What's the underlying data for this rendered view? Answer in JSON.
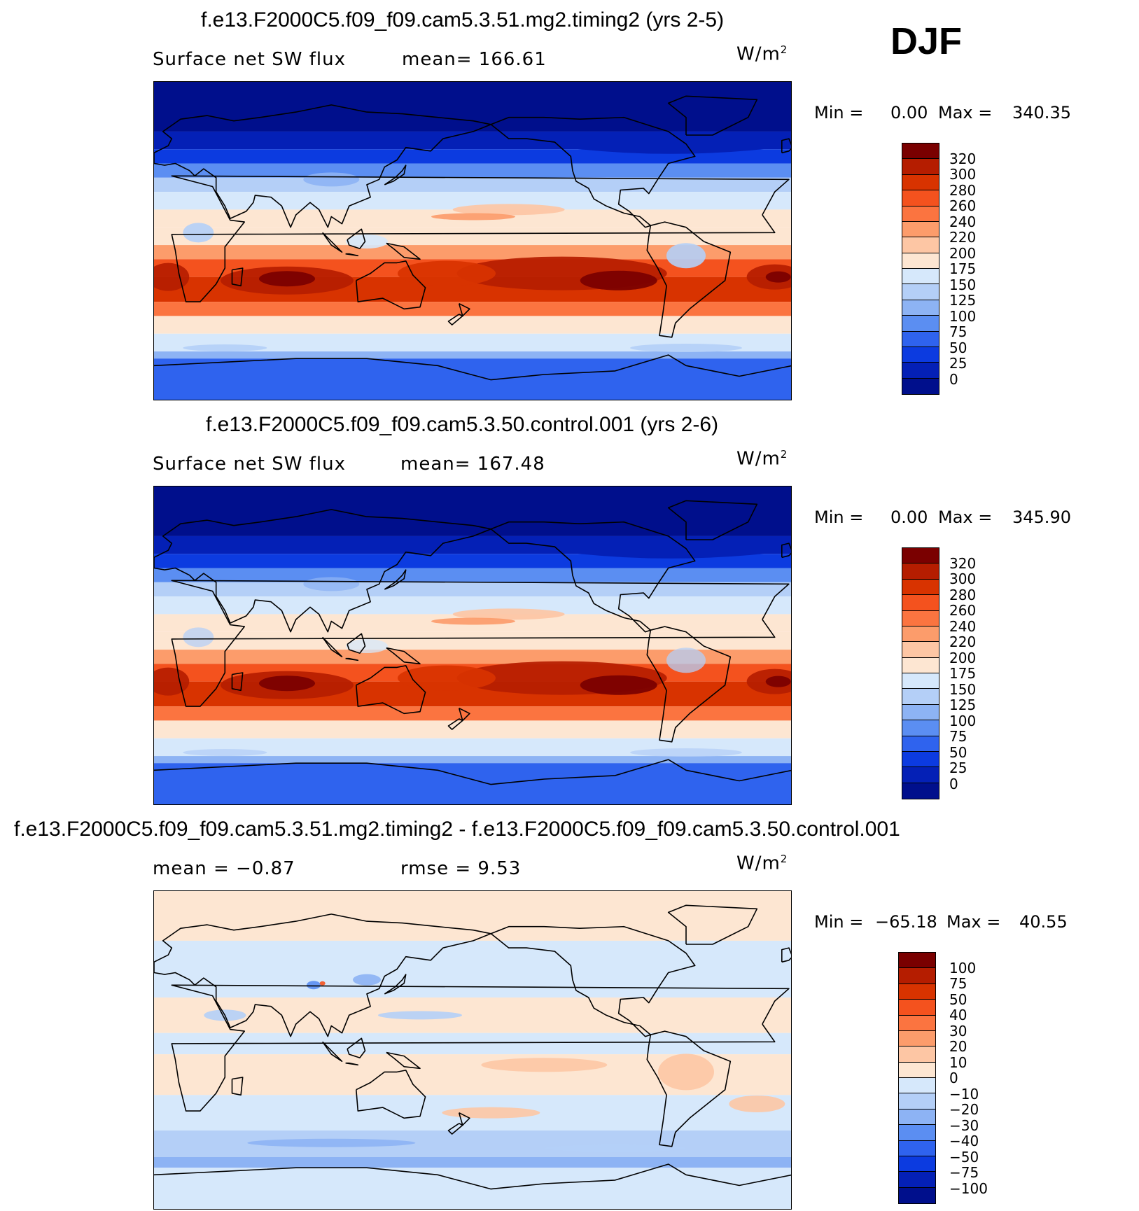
{
  "season": "DJF",
  "units": "W/m",
  "units_sup": "2",
  "panels": [
    {
      "title": "f.e13.F2000C5.f09_f09.cam5.3.51.mg2.timing2 (yrs 2-5)",
      "variable": "Surface net SW flux",
      "stat": "mean=  166.61",
      "min_label": "Min  =",
      "min_value": "0.00",
      "max_label": "Max  =",
      "max_value": "340.35",
      "kind": "absolute"
    },
    {
      "title": "f.e13.F2000C5.f09_f09.cam5.3.50.control.001 (yrs 2-6)",
      "variable": "Surface net SW flux",
      "stat": "mean=  167.48",
      "min_label": "Min  =",
      "min_value": "0.00",
      "max_label": "Max  =",
      "max_value": "345.90",
      "kind": "absolute"
    },
    {
      "title": "f.e13.F2000C5.f09_f09.cam5.3.51.mg2.timing2 - f.e13.F2000C5.f09_f09.cam5.3.50.control.001",
      "variable": "mean  =    −0.87",
      "stat": "rmse  =     9.53",
      "min_label": "Min  =",
      "min_value": "−65.18",
      "max_label": "Max  =",
      "max_value": "40.55",
      "kind": "difference"
    }
  ],
  "colorbars": {
    "absolute": {
      "levels": [
        "320",
        "300",
        "280",
        "260",
        "240",
        "220",
        "200",
        "175",
        "150",
        "125",
        "100",
        "75",
        "50",
        "25",
        "0"
      ],
      "colors": [
        "#7a0000",
        "#b51d00",
        "#d83300",
        "#f4521e",
        "#fb7440",
        "#fc9c6b",
        "#fdc6a4",
        "#fde6d2",
        "#d6e8fb",
        "#b4cff7",
        "#8db3f4",
        "#5b8ef2",
        "#2f63ee",
        "#0c3be0",
        "#0420b6",
        "#000f8c"
      ]
    },
    "difference": {
      "levels": [
        "100",
        "75",
        "50",
        "40",
        "30",
        "20",
        "10",
        "0",
        "−10",
        "−20",
        "−30",
        "−40",
        "−50",
        "−75",
        "−100"
      ],
      "colors": [
        "#7a0000",
        "#b51d00",
        "#d83300",
        "#f4521e",
        "#fb7440",
        "#fc9c6b",
        "#fdc6a4",
        "#fde6d2",
        "#d6e8fb",
        "#b4cff7",
        "#8db3f4",
        "#5b8ef2",
        "#2f63ee",
        "#0c3be0",
        "#0420b6",
        "#000f8c"
      ]
    }
  }
}
